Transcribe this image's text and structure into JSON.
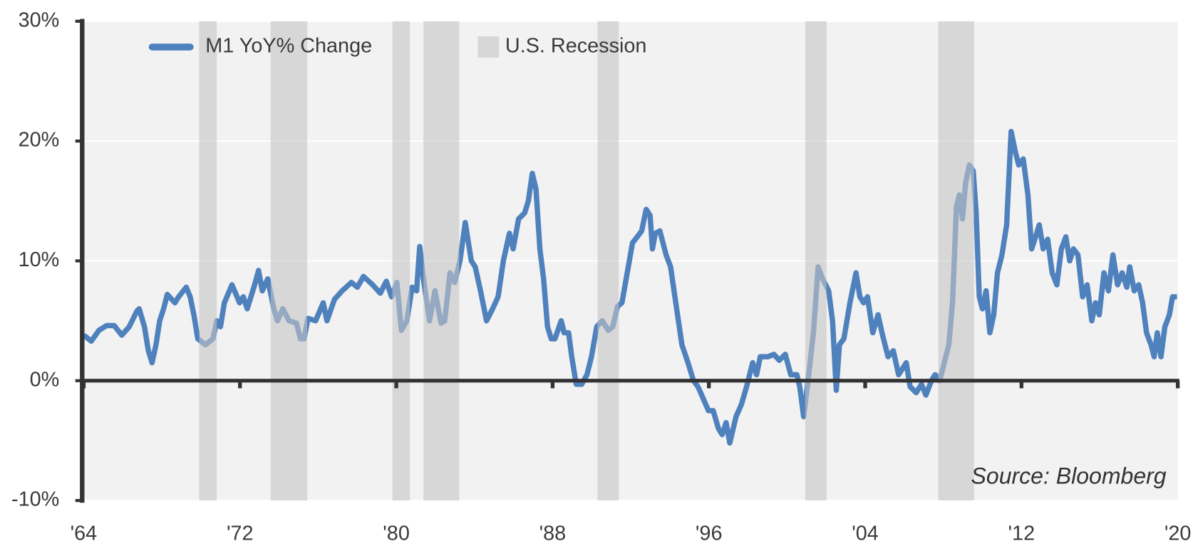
{
  "chart_data": {
    "type": "line",
    "series": [
      {
        "name": "M1 YoY% Change",
        "color": "#4f81bd",
        "x": [
          1964.0,
          1964.39,
          1964.78,
          1965.17,
          1965.56,
          1965.95,
          1966.33,
          1966.72,
          1966.84,
          1967.11,
          1967.31,
          1967.5,
          1967.7,
          1967.89,
          1968.09,
          1968.28,
          1968.67,
          1968.86,
          1969.25,
          1969.45,
          1969.64,
          1969.84,
          1970.23,
          1970.62,
          1970.81,
          1971.0,
          1971.2,
          1971.59,
          1971.98,
          1972.17,
          1972.37,
          1972.75,
          1972.95,
          1973.14,
          1973.42,
          1973.73,
          1973.92,
          1974.19,
          1974.51,
          1974.89,
          1975.09,
          1975.28,
          1975.48,
          1975.87,
          1976.26,
          1976.45,
          1976.84,
          1977.23,
          1977.7,
          1978.01,
          1978.32,
          1978.79,
          1979.18,
          1979.49,
          1979.76,
          1980.03,
          1980.26,
          1980.54,
          1980.81,
          1981.04,
          1981.2,
          1981.39,
          1981.7,
          1981.98,
          1982.29,
          1982.48,
          1982.75,
          1982.99,
          1983.26,
          1983.53,
          1983.84,
          1984.04,
          1984.31,
          1984.62,
          1984.93,
          1985.21,
          1985.48,
          1985.79,
          1985.98,
          1986.26,
          1986.57,
          1986.76,
          1986.96,
          1987.15,
          1987.35,
          1987.54,
          1987.74,
          1987.93,
          1988.12,
          1988.44,
          1988.59,
          1988.82,
          1988.98,
          1989.21,
          1989.49,
          1989.76,
          1989.99,
          1990.26,
          1990.54,
          1990.85,
          1991.08,
          1991.32,
          1991.55,
          1991.82,
          1992.09,
          1992.33,
          1992.56,
          1992.79,
          1992.99,
          1993.11,
          1993.26,
          1993.49,
          1993.65,
          1993.81,
          1994.04,
          1994.35,
          1994.62,
          1994.93,
          1995.21,
          1995.44,
          1995.71,
          1995.98,
          1996.22,
          1996.49,
          1996.68,
          1996.88,
          1997.07,
          1997.39,
          1997.66,
          1997.93,
          1998.24,
          1998.44,
          1998.63,
          1999.02,
          1999.33,
          1999.6,
          1999.91,
          2000.19,
          2000.5,
          2000.65,
          2000.85,
          2001.04,
          2001.35,
          2001.59,
          2001.82,
          2002.13,
          2002.33,
          2002.52,
          2002.68,
          2002.91,
          2003.22,
          2003.53,
          2003.73,
          2003.92,
          2004.12,
          2004.39,
          2004.66,
          2004.86,
          2005.17,
          2005.44,
          2005.71,
          2005.91,
          2006.1,
          2006.3,
          2006.61,
          2006.88,
          2007.11,
          2007.39,
          2007.58,
          2007.81,
          2008.05,
          2008.28,
          2008.47,
          2008.67,
          2008.82,
          2008.98,
          2009.14,
          2009.33,
          2009.53,
          2009.68,
          2009.84,
          2010.0,
          2010.19,
          2010.38,
          2010.58,
          2010.77,
          2011.0,
          2011.24,
          2011.47,
          2011.7,
          2011.86,
          2012.09,
          2012.33,
          2012.52,
          2012.72,
          2012.91,
          2013.11,
          2013.34,
          2013.57,
          2013.81,
          2014.04,
          2014.27,
          2014.47,
          2014.66,
          2014.89,
          2015.13,
          2015.36,
          2015.6,
          2015.79,
          2015.98,
          2016.22,
          2016.45,
          2016.68,
          2016.92,
          2017.15,
          2017.39,
          2017.54,
          2017.77,
          2018.0,
          2018.2,
          2018.4,
          2018.63,
          2018.79,
          2018.95,
          2019.14,
          2019.34,
          2019.57,
          2019.73,
          2019.96
        ],
        "values": [
          3.8,
          3.3,
          4.2,
          4.6,
          4.6,
          3.8,
          4.5,
          5.8,
          6.0,
          4.5,
          2.5,
          1.5,
          3.0,
          5.0,
          6.0,
          7.2,
          6.5,
          7.0,
          7.8,
          7.0,
          5.5,
          3.5,
          3.0,
          3.5,
          5.0,
          4.5,
          6.5,
          8.0,
          6.5,
          7.0,
          6.0,
          8.0,
          9.2,
          7.5,
          8.5,
          6.0,
          5.0,
          6.0,
          5.0,
          4.8,
          3.5,
          3.5,
          5.2,
          5.0,
          6.5,
          5.0,
          6.8,
          7.5,
          8.2,
          7.8,
          8.7,
          8.0,
          7.3,
          8.3,
          7.0,
          8.2,
          4.2,
          5.0,
          7.8,
          7.5,
          11.2,
          8.5,
          5.0,
          7.5,
          4.8,
          5.0,
          9.0,
          8.2,
          10.0,
          13.2,
          10.0,
          9.5,
          7.5,
          5.0,
          6.0,
          7.0,
          10.0,
          12.3,
          11.0,
          13.5,
          14.0,
          15.0,
          17.3,
          16.0,
          11.0,
          8.5,
          4.5,
          3.5,
          3.5,
          5.0,
          4.0,
          4.0,
          2.0,
          -0.3,
          -0.3,
          0.5,
          2.0,
          4.5,
          5.0,
          4.2,
          4.5,
          6.2,
          6.5,
          9.0,
          11.5,
          12.0,
          12.5,
          14.3,
          13.8,
          11.0,
          12.3,
          12.5,
          11.5,
          10.5,
          9.5,
          6.0,
          3.0,
          1.5,
          0.0,
          -0.5,
          -1.5,
          -2.5,
          -2.5,
          -4.0,
          -4.5,
          -3.5,
          -5.2,
          -3.0,
          -2.0,
          -0.5,
          1.5,
          0.5,
          2.0,
          2.0,
          2.2,
          1.7,
          2.2,
          0.5,
          0.5,
          -0.5,
          -3.0,
          -0.5,
          4.0,
          9.5,
          8.5,
          7.5,
          5.0,
          -0.8,
          3.0,
          3.5,
          6.5,
          9.0,
          7.0,
          6.5,
          7.0,
          4.0,
          5.5,
          4.0,
          2.0,
          2.5,
          0.5,
          1.0,
          1.5,
          -0.5,
          -1.0,
          -0.3,
          -1.2,
          0.0,
          0.5,
          0.0,
          1.5,
          3.0,
          6.5,
          14.5,
          15.5,
          13.5,
          16.5,
          18.0,
          17.5,
          14.0,
          7.0,
          6.0,
          7.5,
          4.0,
          5.5,
          9.0,
          10.5,
          13.0,
          20.8,
          19.0,
          18.0,
          18.5,
          15.5,
          11.0,
          12.0,
          13.0,
          11.0,
          11.8,
          9.0,
          8.0,
          11.0,
          12.0,
          10.0,
          11.0,
          10.5,
          7.0,
          8.0,
          5.0,
          6.5,
          5.5,
          9.0,
          7.5,
          10.5,
          8.0,
          9.0,
          7.8,
          9.5,
          7.5,
          8.0,
          6.5,
          4.0,
          3.0,
          2.0,
          4.0,
          2.0,
          4.5,
          5.5,
          7.0,
          7.0
        ]
      }
    ],
    "recessions": {
      "name": "U.S. Recession",
      "color": "#c4c4c4",
      "spans": [
        [
          1969.91,
          1970.81
        ],
        [
          1973.57,
          1975.44
        ],
        [
          1979.8,
          1980.7
        ],
        [
          1981.39,
          1983.22
        ],
        [
          1990.3,
          1991.39
        ],
        [
          2000.93,
          2002.02
        ],
        [
          2007.74,
          2009.57
        ]
      ]
    },
    "annotation": "Source: Bloomberg",
    "xlim": [
      1964,
      2020
    ],
    "xticks": [
      {
        "value": 1964,
        "label": "'64"
      },
      {
        "value": 1972,
        "label": "'72"
      },
      {
        "value": 1980,
        "label": "'80"
      },
      {
        "value": 1988,
        "label": "'88"
      },
      {
        "value": 1996,
        "label": "'96"
      },
      {
        "value": 2004,
        "label": "'04"
      },
      {
        "value": 2012,
        "label": "'12"
      },
      {
        "value": 2020,
        "label": "'20"
      }
    ],
    "ylim": [
      -10,
      30
    ],
    "yticks": [
      {
        "value": -10,
        "label": "-10%"
      },
      {
        "value": 0,
        "label": "0%"
      },
      {
        "value": 10,
        "label": "10%"
      },
      {
        "value": 20,
        "label": "20%"
      },
      {
        "value": 30,
        "label": "30%"
      }
    ],
    "grid": true
  }
}
